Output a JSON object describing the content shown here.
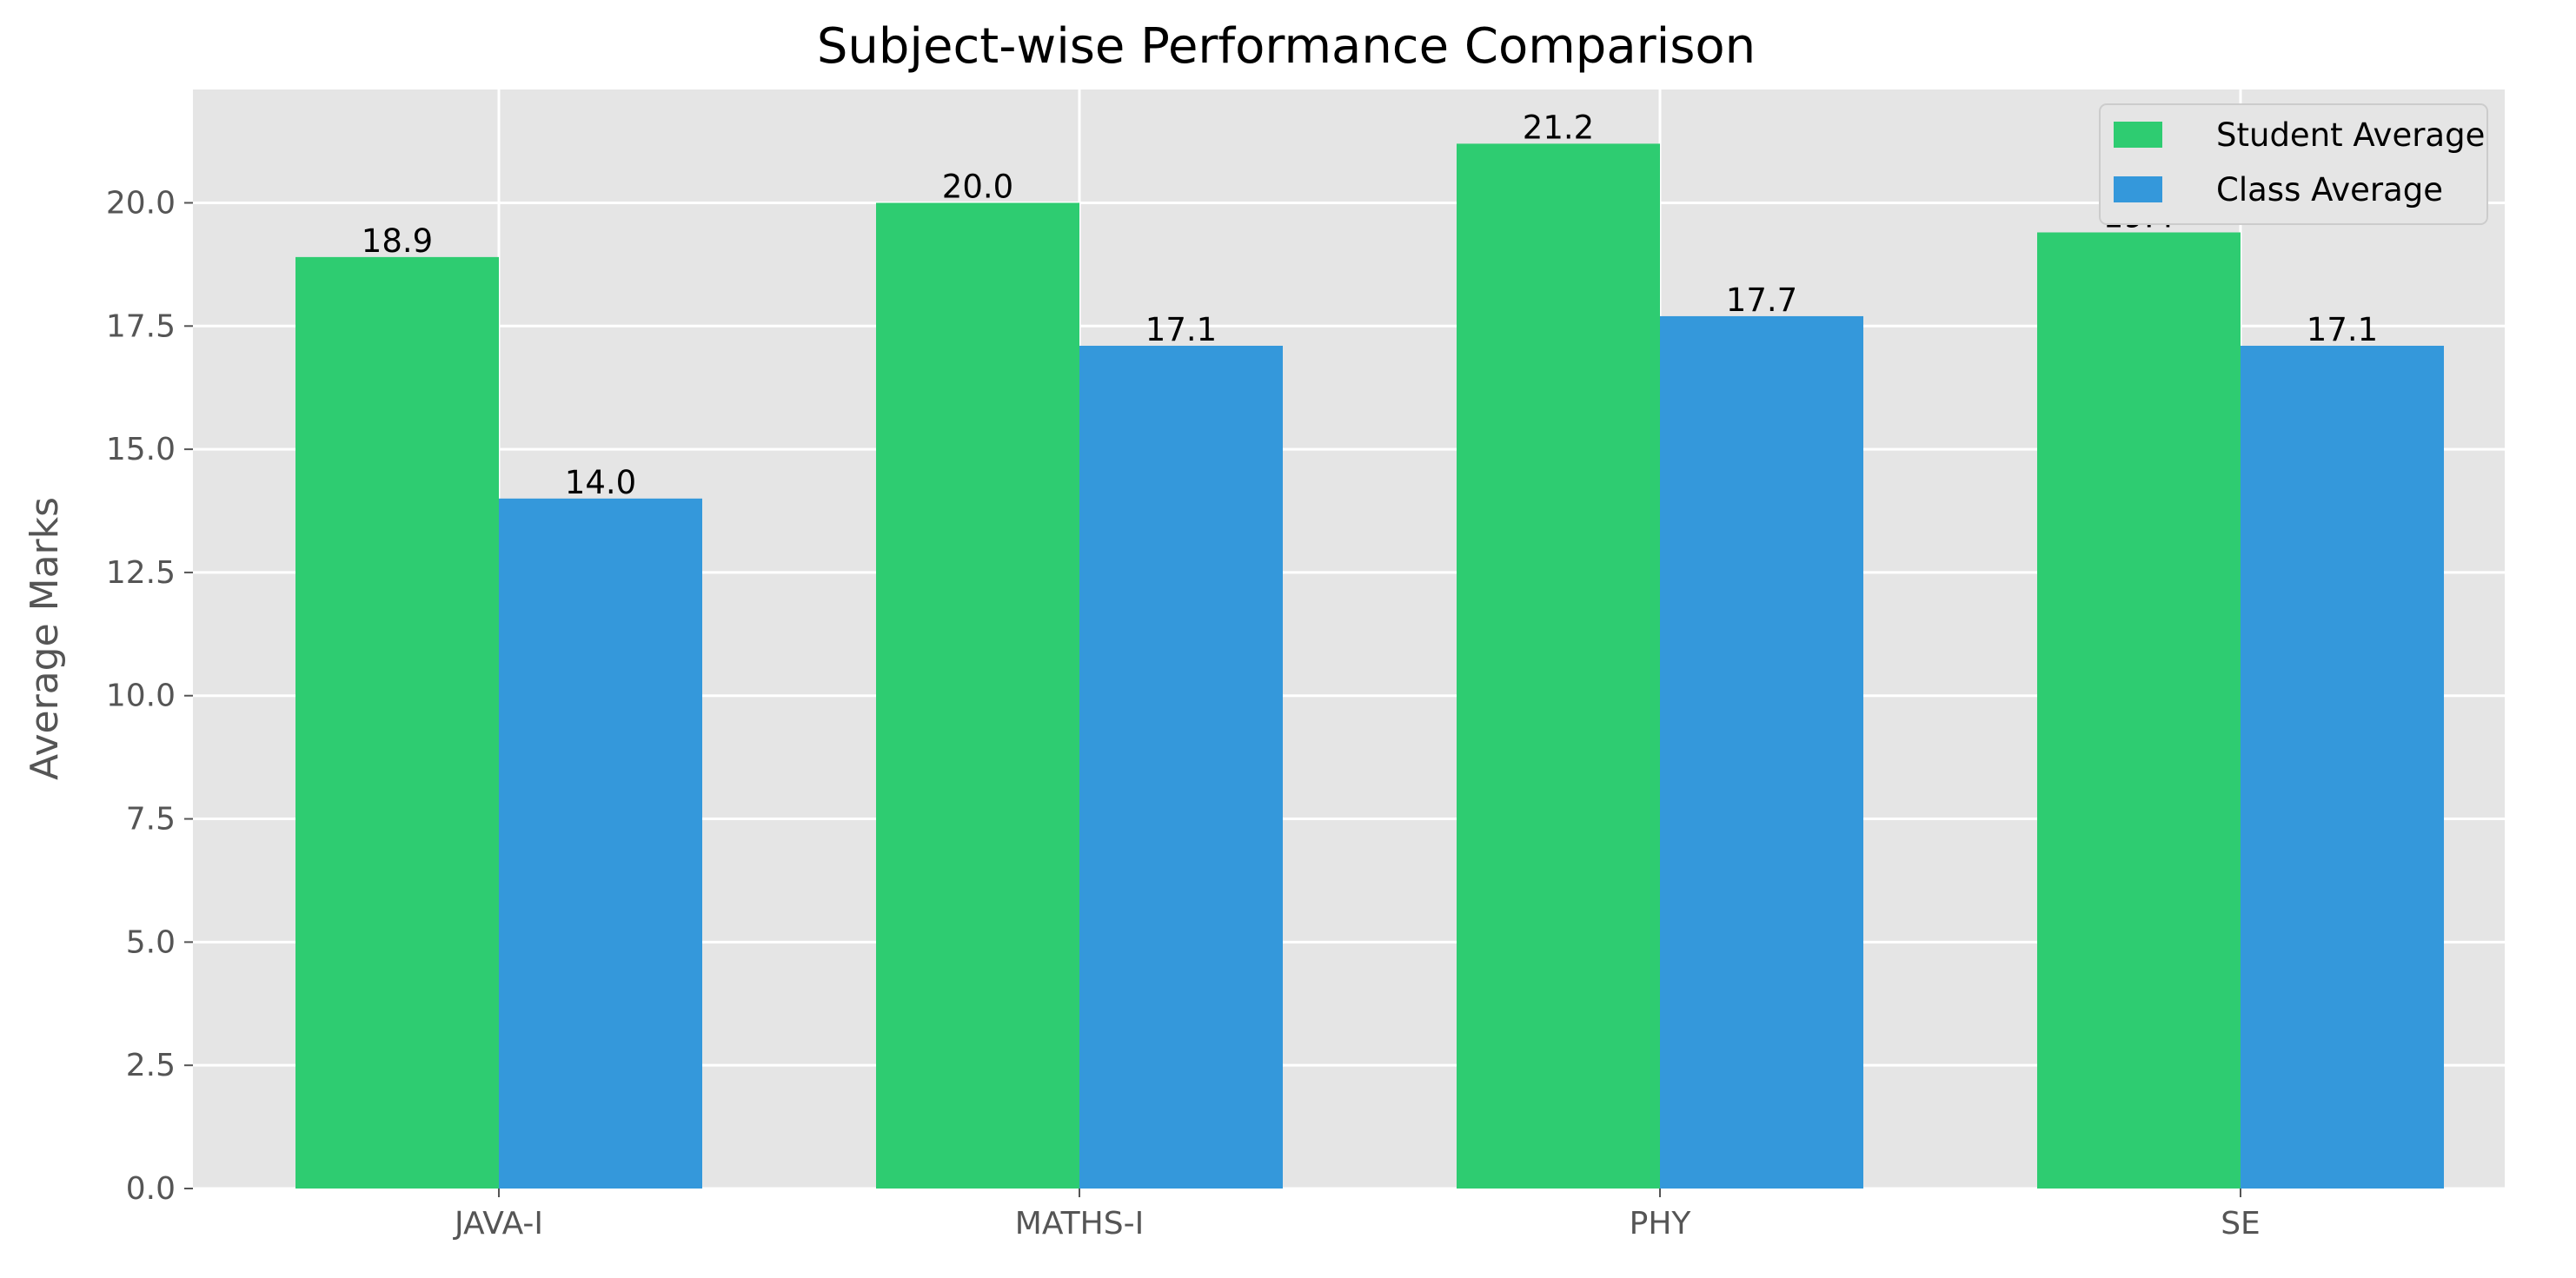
{
  "chart_data": {
    "type": "bar",
    "title": "Subject-wise Performance Comparison",
    "xlabel": "",
    "ylabel": "Average Marks",
    "categories": [
      "JAVA-I",
      "MATHS-I",
      "PHY",
      "SE"
    ],
    "series": [
      {
        "name": "Student Average",
        "values": [
          18.9,
          20.0,
          21.2,
          19.4
        ],
        "labels": [
          "18.9",
          "20.0",
          "21.2",
          "19.4"
        ],
        "color": "#2ecc71"
      },
      {
        "name": "Class Average",
        "values": [
          14.0,
          17.1,
          17.7,
          17.1
        ],
        "labels": [
          "14.0",
          "17.1",
          "17.7",
          "17.1"
        ],
        "color": "#3498db"
      }
    ],
    "ylim": [
      0,
      22.3
    ],
    "yticks": [
      "0.0",
      "2.5",
      "5.0",
      "7.5",
      "10.0",
      "12.5",
      "15.0",
      "17.5",
      "20.0"
    ],
    "ytick_values": [
      0,
      2.5,
      5,
      7.5,
      10,
      12.5,
      15,
      17.5,
      20
    ],
    "grid": true,
    "legend_position": "top-right",
    "background_color": "#e5e5e5",
    "grid_color": "#ffffff"
  }
}
